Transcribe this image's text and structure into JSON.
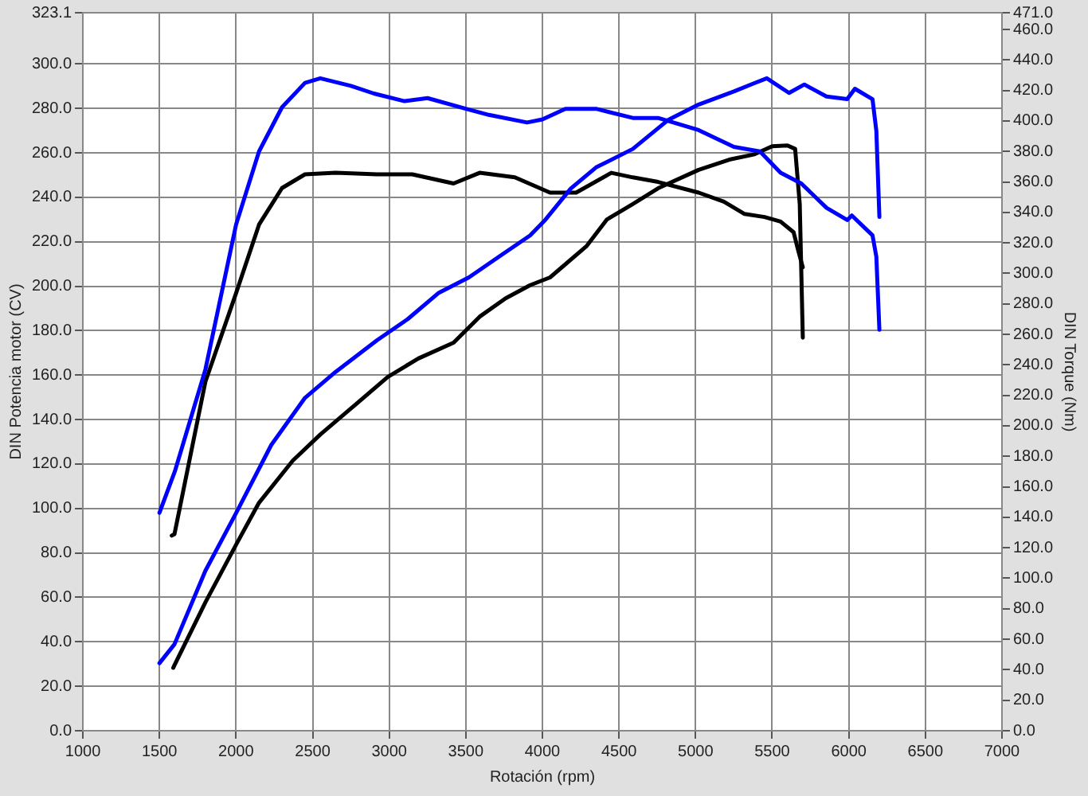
{
  "chart_data": {
    "type": "line",
    "xlabel": "Rotación (rpm)",
    "ylabel": "DIN Potencia motor (CV)",
    "y2label": "DIN Torque (Nm)",
    "xlim": [
      1000,
      7000
    ],
    "xticks": [
      1000,
      1500,
      2000,
      2500,
      3000,
      3500,
      4000,
      4500,
      5000,
      5500,
      6000,
      6500,
      7000
    ],
    "ylim": [
      0,
      323.1
    ],
    "yticks": [
      {
        "value": 0,
        "label": "0.0"
      },
      {
        "value": 20,
        "label": "20.0"
      },
      {
        "value": 40,
        "label": "40.0"
      },
      {
        "value": 60,
        "label": "60.0"
      },
      {
        "value": 80,
        "label": "80.0"
      },
      {
        "value": 100,
        "label": "100.0"
      },
      {
        "value": 120,
        "label": "120.0"
      },
      {
        "value": 140,
        "label": "140.0"
      },
      {
        "value": 160,
        "label": "160.0"
      },
      {
        "value": 180,
        "label": "180.0"
      },
      {
        "value": 200,
        "label": "200.0"
      },
      {
        "value": 220,
        "label": "220.0"
      },
      {
        "value": 240,
        "label": "240.0"
      },
      {
        "value": 260,
        "label": "260.0"
      },
      {
        "value": 280,
        "label": "280.0"
      },
      {
        "value": 300,
        "label": "300.0"
      },
      {
        "value": 323.1,
        "label": "323.1"
      }
    ],
    "y2lim": [
      0,
      471
    ],
    "y2ticks": [
      {
        "value": 0,
        "label": "0.0"
      },
      {
        "value": 20,
        "label": "20.0"
      },
      {
        "value": 40,
        "label": "40.0"
      },
      {
        "value": 60,
        "label": "60.0"
      },
      {
        "value": 80,
        "label": "80.0"
      },
      {
        "value": 100,
        "label": "100.0"
      },
      {
        "value": 120,
        "label": "120.0"
      },
      {
        "value": 140,
        "label": "140.0"
      },
      {
        "value": 160,
        "label": "160.0"
      },
      {
        "value": 180,
        "label": "180.0"
      },
      {
        "value": 200,
        "label": "200.0"
      },
      {
        "value": 220,
        "label": "220.0"
      },
      {
        "value": 240,
        "label": "240.0"
      },
      {
        "value": 260,
        "label": "260.0"
      },
      {
        "value": 280,
        "label": "280.0"
      },
      {
        "value": 300,
        "label": "300.0"
      },
      {
        "value": 320,
        "label": "320.0"
      },
      {
        "value": 340,
        "label": "340.0"
      },
      {
        "value": 360,
        "label": "360.0"
      },
      {
        "value": 380,
        "label": "380.0"
      },
      {
        "value": 400,
        "label": "400.0"
      },
      {
        "value": 420,
        "label": "420.0"
      },
      {
        "value": 440,
        "label": "440.0"
      },
      {
        "value": 460,
        "label": "460.0"
      },
      {
        "value": 471,
        "label": "471.0"
      }
    ],
    "grid": true,
    "legend": false,
    "marker": "none",
    "line_style": "solid",
    "series": [
      {
        "color": "#0000ff",
        "x": [
          1500,
          1598,
          1800,
          2000,
          2230,
          2450,
          2650,
          2920,
          3120,
          3320,
          3520,
          3720,
          3920,
          4020,
          4185,
          4350,
          4590,
          4820,
          5020,
          5250,
          5380,
          5465,
          5610,
          5710,
          5855,
          5990,
          6040,
          6155,
          6180,
          6200
        ],
        "values": [
          30.4,
          38.9,
          72,
          97.9,
          128.6,
          149.8,
          161.5,
          175.7,
          185.2,
          196.9,
          204,
          213.5,
          222.9,
          230,
          244,
          253.5,
          261.8,
          274.8,
          281.8,
          287.7,
          291.3,
          293.6,
          287,
          290.8,
          285.4,
          284.2,
          288.9,
          284.2,
          270,
          231.2
        ]
      },
      {
        "color": "#0000ff",
        "axis": "y2",
        "x": [
          1500,
          1600,
          1800,
          2000,
          2150,
          2300,
          2450,
          2550,
          2750,
          2900,
          3100,
          3250,
          3500,
          3650,
          3900,
          4000,
          4150,
          4350,
          4590,
          4755,
          5020,
          5250,
          5420,
          5555,
          5690,
          5855,
          5990,
          6020,
          6155,
          6180,
          6200
        ],
        "values": [
          143,
          170,
          237,
          332,
          380,
          409,
          425,
          428,
          423,
          418,
          413,
          415,
          408,
          404,
          399,
          401,
          408,
          408,
          402,
          402,
          394,
          383,
          380,
          366,
          359,
          343,
          335,
          338,
          325,
          311,
          263
        ]
      },
      {
        "color": "#000000",
        "x": [
          1590,
          1598,
          1800,
          2000,
          2150,
          2370,
          2550,
          2750,
          2990,
          3190,
          3420,
          3590,
          3760,
          3920,
          4050,
          4290,
          4420,
          4590,
          4755,
          5020,
          5220,
          5385,
          5500,
          5600,
          5650,
          5680,
          5700
        ],
        "values": [
          28.3,
          29.5,
          57.8,
          83.7,
          102.6,
          121.5,
          133.3,
          145,
          159.2,
          167.5,
          174.6,
          186.3,
          194.6,
          200.5,
          204,
          218.2,
          230,
          237,
          244.1,
          252.4,
          257,
          259.4,
          263,
          263.4,
          261.8,
          237,
          176.9
        ]
      },
      {
        "color": "#000000",
        "axis": "y2",
        "x": [
          1580,
          1598,
          1800,
          2000,
          2150,
          2300,
          2450,
          2650,
          2920,
          3150,
          3420,
          3590,
          3820,
          4050,
          4220,
          4450,
          4590,
          4755,
          5020,
          5185,
          5320,
          5450,
          5555,
          5640,
          5670,
          5700
        ],
        "values": [
          128,
          129,
          229,
          287,
          332,
          356,
          365,
          366,
          365,
          365,
          359,
          366,
          363,
          353,
          353,
          366,
          363,
          360,
          353,
          347,
          339,
          337,
          334,
          327,
          315,
          304
        ]
      }
    ]
  }
}
